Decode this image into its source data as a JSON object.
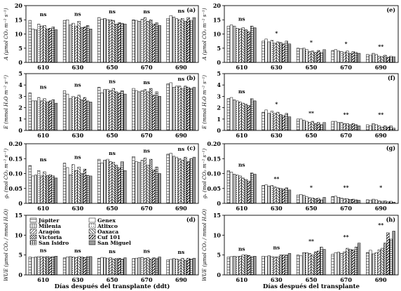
{
  "chart_data": [
    {
      "panel": "(a)",
      "type": "bar",
      "ylabel": "A (μmol CO₂ m⁻² s⁻¹)",
      "ylim": [
        0,
        20
      ],
      "yticks": [
        0,
        5,
        10,
        15,
        20
      ],
      "categories": [
        "610",
        "630",
        "650",
        "670",
        "690"
      ],
      "significance": [
        "ns",
        "ns",
        "ns",
        "ns",
        "ns"
      ],
      "groups": [
        [
          14.8,
          11.8,
          11.5,
          13.5,
          12.8,
          13.0,
          11.8,
          12.0,
          12.5,
          11.5
        ],
        [
          14.8,
          15.0,
          13.2,
          13.8,
          12.8,
          14.5,
          12.3,
          12.5,
          13.0,
          11.8
        ],
        [
          15.8,
          15.2,
          15.5,
          15.0,
          15.0,
          14.8,
          13.5,
          14.0,
          13.8,
          13.5
        ],
        [
          15.0,
          14.8,
          14.5,
          15.2,
          15.8,
          14.5,
          15.0,
          13.5,
          14.0,
          13.0
        ],
        [
          15.5,
          16.5,
          16.0,
          15.5,
          15.0,
          15.5,
          14.5,
          15.8,
          14.8,
          15.8
        ]
      ]
    },
    {
      "panel": "(b)",
      "type": "bar",
      "ylabel": "E (mmol H₂O m⁻² s⁻¹)",
      "ylim": [
        0,
        5
      ],
      "yticks": [
        0,
        1,
        2,
        3,
        4,
        5
      ],
      "categories": [
        "610",
        "630",
        "650",
        "670",
        "690"
      ],
      "significance": [
        "ns",
        "ns",
        "ns",
        "ns",
        "ns"
      ],
      "groups": [
        [
          3.3,
          2.6,
          2.6,
          2.9,
          2.6,
          2.8,
          2.5,
          2.6,
          2.7,
          2.4
        ],
        [
          3.5,
          3.2,
          2.8,
          3.0,
          2.9,
          3.1,
          2.7,
          2.9,
          2.6,
          2.5
        ],
        [
          3.8,
          3.3,
          3.6,
          3.6,
          3.5,
          3.7,
          3.4,
          3.3,
          3.5,
          3.2
        ],
        [
          3.7,
          3.5,
          3.4,
          3.5,
          3.6,
          3.4,
          3.7,
          3.1,
          3.4,
          3.0
        ],
        [
          4.1,
          4.2,
          3.8,
          3.9,
          3.9,
          3.7,
          3.9,
          3.8,
          3.7,
          3.8
        ]
      ]
    },
    {
      "panel": "(c)",
      "type": "bar",
      "ylabel": "gₛ (mol CO₂ m⁻² s⁻¹)",
      "ylim": [
        0,
        0.2
      ],
      "yticks": [
        "0",
        "0.05",
        "0.10",
        "0.15",
        "0.20"
      ],
      "categories": [
        "610",
        "630",
        "650",
        "670",
        "690"
      ],
      "significance": [
        "ns",
        "ns",
        "ns",
        "ns",
        "ns"
      ],
      "groups": [
        [
          0.127,
          0.092,
          0.095,
          0.11,
          0.092,
          0.106,
          0.093,
          0.096,
          0.092,
          0.085
        ],
        [
          0.135,
          0.12,
          0.096,
          0.13,
          0.11,
          0.122,
          0.1,
          0.115,
          0.094,
          0.092
        ],
        [
          0.148,
          0.135,
          0.145,
          0.148,
          0.14,
          0.138,
          0.128,
          0.12,
          0.14,
          0.11
        ],
        [
          0.157,
          0.14,
          0.137,
          0.145,
          0.152,
          0.128,
          0.148,
          0.112,
          0.122,
          0.1
        ],
        [
          0.165,
          0.168,
          0.158,
          0.155,
          0.15,
          0.145,
          0.155,
          0.14,
          0.15,
          0.155
        ]
      ]
    },
    {
      "panel": "(d)",
      "type": "bar",
      "ylabel": "WUE (μmol CO₂ / mmol H₂O)",
      "ylim": [
        0,
        15
      ],
      "yticks": [
        0,
        5,
        10,
        15
      ],
      "categories": [
        "610",
        "630",
        "650",
        "670",
        "690"
      ],
      "significance": [
        "ns",
        "ns",
        "ns",
        "ns",
        "ns"
      ],
      "groups": [
        [
          4.5,
          4.4,
          4.5,
          4.6,
          4.6,
          4.5,
          4.6,
          4.5,
          4.6,
          4.7
        ],
        [
          4.3,
          4.5,
          4.6,
          4.5,
          4.4,
          4.6,
          4.5,
          4.4,
          4.6,
          4.6
        ],
        [
          4.2,
          4.4,
          4.3,
          4.2,
          4.3,
          4.0,
          4.1,
          4.2,
          4.0,
          4.3
        ],
        [
          4.1,
          4.2,
          4.3,
          4.4,
          4.2,
          4.3,
          4.0,
          4.3,
          4.2,
          4.5
        ],
        [
          3.8,
          3.9,
          4.1,
          4.0,
          3.8,
          4.2,
          3.7,
          4.2,
          4.0,
          4.2
        ]
      ]
    },
    {
      "panel": "(e)",
      "type": "bar",
      "ylabel": "A (μmol CO₂ m⁻² s⁻¹)",
      "ylim": [
        0,
        20
      ],
      "yticks": [
        0,
        5,
        10,
        15,
        20
      ],
      "categories": [
        "610",
        "630",
        "650",
        "670",
        "690"
      ],
      "significance": [
        "ns",
        "*",
        "*",
        "*",
        "**"
      ],
      "groups": [
        [
          12.8,
          13.2,
          12.8,
          12.0,
          11.8,
          12.2,
          11.5,
          10.8,
          12.8,
          12.2
        ],
        [
          7.5,
          8.2,
          7.2,
          7.8,
          6.8,
          7.2,
          7.0,
          6.5,
          7.5,
          6.5
        ],
        [
          5.0,
          4.8,
          5.0,
          4.5,
          3.8,
          4.0,
          3.5,
          4.2,
          3.5,
          4.5
        ],
        [
          4.2,
          4.5,
          4.0,
          3.8,
          3.5,
          4.0,
          3.2,
          3.8,
          3.5,
          3.2
        ],
        [
          2.8,
          2.5,
          3.2,
          2.8,
          2.2,
          2.0,
          2.5,
          1.8,
          2.2,
          2.0
        ]
      ]
    },
    {
      "panel": "(f)",
      "type": "bar",
      "ylabel": "E (mmol H₂O m⁻² s⁻¹)",
      "ylim": [
        0,
        5
      ],
      "yticks": [
        0,
        1,
        2,
        3,
        4,
        5
      ],
      "categories": [
        "610",
        "630",
        "650",
        "670",
        "690"
      ],
      "significance": [
        "ns",
        "*",
        "**",
        "**",
        "**"
      ],
      "groups": [
        [
          2.8,
          2.9,
          2.7,
          2.6,
          2.5,
          2.4,
          2.3,
          2.2,
          2.8,
          2.6
        ],
        [
          1.6,
          1.8,
          1.5,
          1.7,
          1.5,
          1.6,
          1.4,
          1.3,
          1.5,
          1.2
        ],
        [
          1.0,
          1.0,
          0.9,
          0.8,
          0.7,
          0.8,
          0.6,
          0.7,
          0.5,
          0.7
        ],
        [
          0.8,
          0.8,
          0.7,
          0.7,
          0.6,
          0.6,
          0.5,
          0.6,
          0.5,
          0.4
        ],
        [
          0.5,
          0.4,
          0.6,
          0.5,
          0.4,
          0.3,
          0.4,
          0.3,
          0.4,
          0.2
        ]
      ]
    },
    {
      "panel": "(g)",
      "type": "bar",
      "ylabel": "gₛ (mol CO₂ m⁻² s⁻¹)",
      "ylim": [
        0,
        0.2
      ],
      "yticks": [
        "0",
        "0.05",
        "0.10",
        "0.15",
        "0.20"
      ],
      "categories": [
        "610",
        "630",
        "650",
        "670",
        "690"
      ],
      "significance": [
        "ns",
        "**",
        "*",
        "**",
        "*"
      ],
      "groups": [
        [
          0.11,
          0.105,
          0.098,
          0.095,
          0.092,
          0.085,
          0.08,
          0.075,
          0.102,
          0.098
        ],
        [
          0.06,
          0.062,
          0.058,
          0.06,
          0.055,
          0.052,
          0.05,
          0.048,
          0.052,
          0.045
        ],
        [
          0.028,
          0.03,
          0.027,
          0.022,
          0.019,
          0.018,
          0.016,
          0.017,
          0.012,
          0.02
        ],
        [
          0.023,
          0.024,
          0.02,
          0.018,
          0.016,
          0.015,
          0.013,
          0.014,
          0.012,
          0.01
        ],
        [
          0.012,
          0.01,
          0.014,
          0.012,
          0.008,
          0.007,
          0.008,
          0.005,
          0.007,
          0.004
        ]
      ]
    },
    {
      "panel": "(h)",
      "type": "bar",
      "ylabel": "WUE (μmol CO₂ / mmol H₂O)",
      "ylim": [
        0,
        15
      ],
      "yticks": [
        0,
        5,
        10,
        15
      ],
      "categories": [
        "610",
        "630",
        "650",
        "670",
        "690"
      ],
      "significance": [
        "ns",
        "ns",
        "**",
        "**",
        "**"
      ],
      "groups": [
        [
          4.5,
          4.6,
          4.7,
          4.6,
          4.7,
          5.0,
          5.0,
          4.9,
          4.6,
          4.7
        ],
        [
          4.7,
          4.6,
          4.8,
          4.6,
          4.5,
          4.5,
          5.0,
          5.0,
          5.0,
          5.4
        ],
        [
          5.0,
          4.8,
          5.6,
          5.6,
          5.4,
          5.0,
          5.8,
          6.0,
          7.0,
          6.4
        ],
        [
          5.2,
          5.6,
          5.7,
          5.4,
          5.8,
          6.7,
          6.4,
          6.3,
          7.0,
          8.0
        ],
        [
          5.6,
          6.2,
          5.3,
          5.6,
          6.3,
          6.7,
          8.0,
          10.6,
          9.0,
          11.0
        ]
      ]
    }
  ],
  "x_axis_labels": {
    "left": "Días después del transplante (ddt)",
    "right": "Días después del transplante"
  },
  "legend": [
    {
      "name": "Júpiter",
      "pattern": "p0"
    },
    {
      "name": "Genex",
      "pattern": "p1"
    },
    {
      "name": "Milenia",
      "pattern": "p2"
    },
    {
      "name": "Atlixco",
      "pattern": "p3"
    },
    {
      "name": "Aragón",
      "pattern": "p4"
    },
    {
      "name": "Oaxaca",
      "pattern": "p5"
    },
    {
      "name": "Victoria",
      "pattern": "p6"
    },
    {
      "name": "Cuf 101",
      "pattern": "p7"
    },
    {
      "name": "San Isidro",
      "pattern": "p8"
    },
    {
      "name": "San Miguel",
      "pattern": "p9"
    }
  ],
  "colors": {
    "ink": "#000000",
    "paper": "#ffffff"
  }
}
